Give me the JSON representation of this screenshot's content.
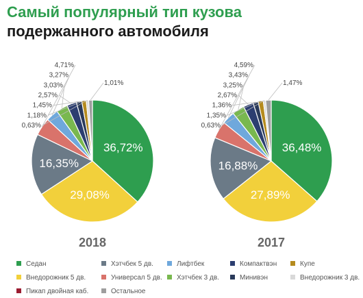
{
  "title": {
    "line1": "Самый популярный тип кузова",
    "line2": "подержанного автомобиля"
  },
  "chart_data": [
    {
      "type": "pie",
      "title": "2018",
      "labels": [
        "Седан",
        "Внедорожник 5 дв.",
        "Хэтчбек 5 дв.",
        "Универсал 5 дв.",
        "Лифтбек",
        "Хэтчбек 3 дв.",
        "Компактвэн",
        "Минивэн",
        "Купе",
        "Внедорожник 3 дв.",
        "Пикап двойная каб.",
        "Остальное"
      ],
      "values": [
        36.72,
        29.08,
        16.35,
        4.71,
        3.27,
        3.03,
        2.57,
        1.45,
        1.18,
        0.63,
        0,
        1.01
      ],
      "value_labels": [
        "36,72%",
        "29,08%",
        "16,35%",
        "4,71%",
        "3,27%",
        "3,03%",
        "2,57%",
        "1,45%",
        "1,18%",
        "0,63%",
        "",
        "1,01%"
      ],
      "colors": [
        "#2e9e4f",
        "#f2d03b",
        "#6b7a87",
        "#d9736b",
        "#6fa8dc",
        "#79b84f",
        "#2c3e70",
        "#2a3a5a",
        "#b58b1e",
        "#d9d9d9",
        "#9b1c31",
        "#9e9e9e"
      ]
    },
    {
      "type": "pie",
      "title": "2017",
      "labels": [
        "Седан",
        "Внедорожник 5 дв.",
        "Хэтчбек 5 дв.",
        "Универсал 5 дв.",
        "Лифтбек",
        "Хэтчбек 3 дв.",
        "Компактвэн",
        "Минивэн",
        "Купе",
        "Внедорожник 3 дв.",
        "Пикап двойная каб.",
        "Остальное"
      ],
      "values": [
        36.48,
        27.89,
        16.88,
        4.59,
        3.43,
        3.25,
        2.67,
        1.36,
        1.35,
        0.63,
        0,
        1.47
      ],
      "value_labels": [
        "36,48%",
        "27,89%",
        "16,88%",
        "4,59%",
        "3,43%",
        "3,25%",
        "2,67%",
        "1,36%",
        "1,35%",
        "0,63%",
        "",
        "1,47%"
      ],
      "colors": [
        "#2e9e4f",
        "#f2d03b",
        "#6b7a87",
        "#d9736b",
        "#6fa8dc",
        "#79b84f",
        "#2c3e70",
        "#2a3a5a",
        "#b58b1e",
        "#d9d9d9",
        "#9b1c31",
        "#9e9e9e"
      ]
    }
  ],
  "legend": [
    {
      "label": "Седан",
      "color": "#2e9e4f"
    },
    {
      "label": "Хэтчбек 5 дв.",
      "color": "#6b7a87"
    },
    {
      "label": "Лифтбек",
      "color": "#6fa8dc"
    },
    {
      "label": "Компактвэн",
      "color": "#2c3e70"
    },
    {
      "label": "Купе",
      "color": "#b58b1e"
    },
    {
      "label": "Внедорожник 5 дв.",
      "color": "#f2d03b"
    },
    {
      "label": "Универсал 5 дв.",
      "color": "#d9736b"
    },
    {
      "label": "Хэтчбек 3 дв.",
      "color": "#79b84f"
    },
    {
      "label": "Минивэн",
      "color": "#2a3a5a"
    },
    {
      "label": "Внедорожник 3 дв.",
      "color": "#d9d9d9"
    },
    {
      "label": "Пикап двойная каб.",
      "color": "#9b1c31"
    },
    {
      "label": "Остальное",
      "color": "#9e9e9e"
    }
  ]
}
